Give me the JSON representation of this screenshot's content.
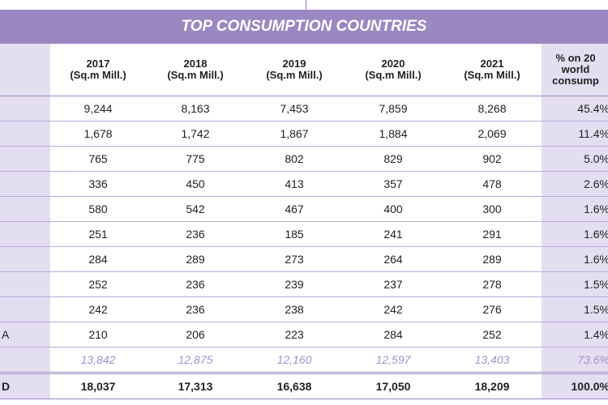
{
  "table": {
    "title": "TOP CONSUMPTION COUNTRIES",
    "header": [
      {
        "year": "2017",
        "unit": "(Sq.m Mill.)"
      },
      {
        "year": "2018",
        "unit": "(Sq.m Mill.)"
      },
      {
        "year": "2019",
        "unit": "(Sq.m Mill.)"
      },
      {
        "year": "2020",
        "unit": "(Sq.m Mill.)"
      },
      {
        "year": "2021",
        "unit": "(Sq.m Mill.)"
      }
    ],
    "share_header": [
      "% on 20",
      "world",
      "consump"
    ],
    "rows": [
      {
        "values": [
          "9,244",
          "8,163",
          "7,453",
          "7,859",
          "8,268"
        ],
        "share": "45.4%"
      },
      {
        "values": [
          "1,678",
          "1,742",
          "1,867",
          "1,884",
          "2,069"
        ],
        "share": "11.4%"
      },
      {
        "values": [
          "765",
          "775",
          "802",
          "829",
          "902"
        ],
        "share": "5.0%"
      },
      {
        "values": [
          "336",
          "450",
          "413",
          "357",
          "478"
        ],
        "share": "2.6%"
      },
      {
        "values": [
          "580",
          "542",
          "467",
          "400",
          "300"
        ],
        "share": "1.6%"
      },
      {
        "values": [
          "251",
          "236",
          "185",
          "241",
          "291"
        ],
        "share": "1.6%"
      },
      {
        "values": [
          "284",
          "289",
          "273",
          "264",
          "289"
        ],
        "share": "1.6%"
      },
      {
        "values": [
          "252",
          "236",
          "239",
          "237",
          "278"
        ],
        "share": "1.5%"
      },
      {
        "values": [
          "242",
          "236",
          "238",
          "242",
          "276"
        ],
        "share": "1.5%"
      },
      {
        "label": "A",
        "values": [
          "210",
          "206",
          "223",
          "284",
          "252"
        ],
        "share": "1.4%"
      }
    ],
    "subtotal": {
      "values": [
        "13,842",
        "12,875",
        "12,160",
        "12,597",
        "13,403"
      ],
      "share": "73.6%"
    },
    "total": {
      "label": "D",
      "values": [
        "18,037",
        "17,313",
        "16,638",
        "17,050",
        "18,209"
      ],
      "share": "100.0%"
    }
  }
}
